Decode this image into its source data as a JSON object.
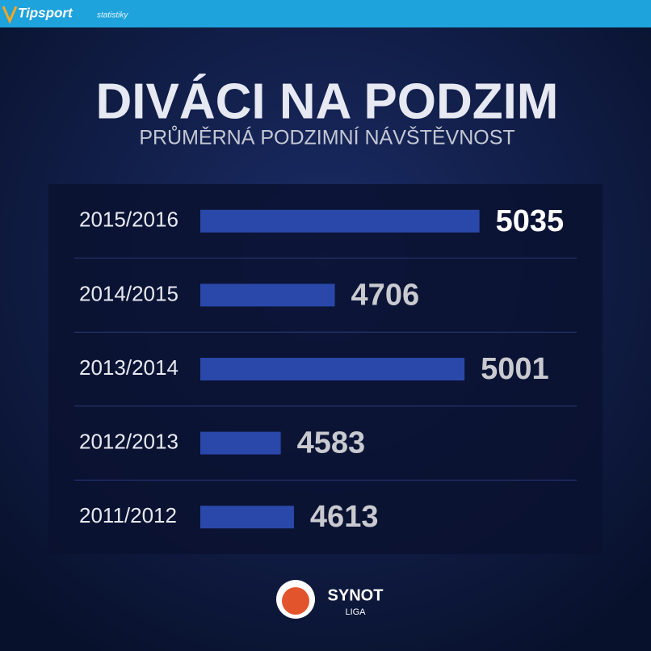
{
  "header": {
    "brand": "Tipsport",
    "section": "statistiky"
  },
  "chart_data": {
    "type": "hbar",
    "title": "DIVÁCI NA PODZIM",
    "subtitle": "PRŮMĚRNÁ PODZIMNÍ NÁVŠTĚVNOST",
    "categories": [
      "2015/2016",
      "2014/2015",
      "2013/2014",
      "2012/2013",
      "2011/2012"
    ],
    "values": [
      5035,
      4706,
      5001,
      4583,
      4613
    ],
    "color": "#2a48aa",
    "xlim": [
      4400,
      5100
    ],
    "label_color": "#c9cad0",
    "highlight": 0,
    "highlight_color": "#ffffff"
  },
  "footer": {
    "logo_top": "SYNOT",
    "logo_bottom": "LIGA"
  }
}
